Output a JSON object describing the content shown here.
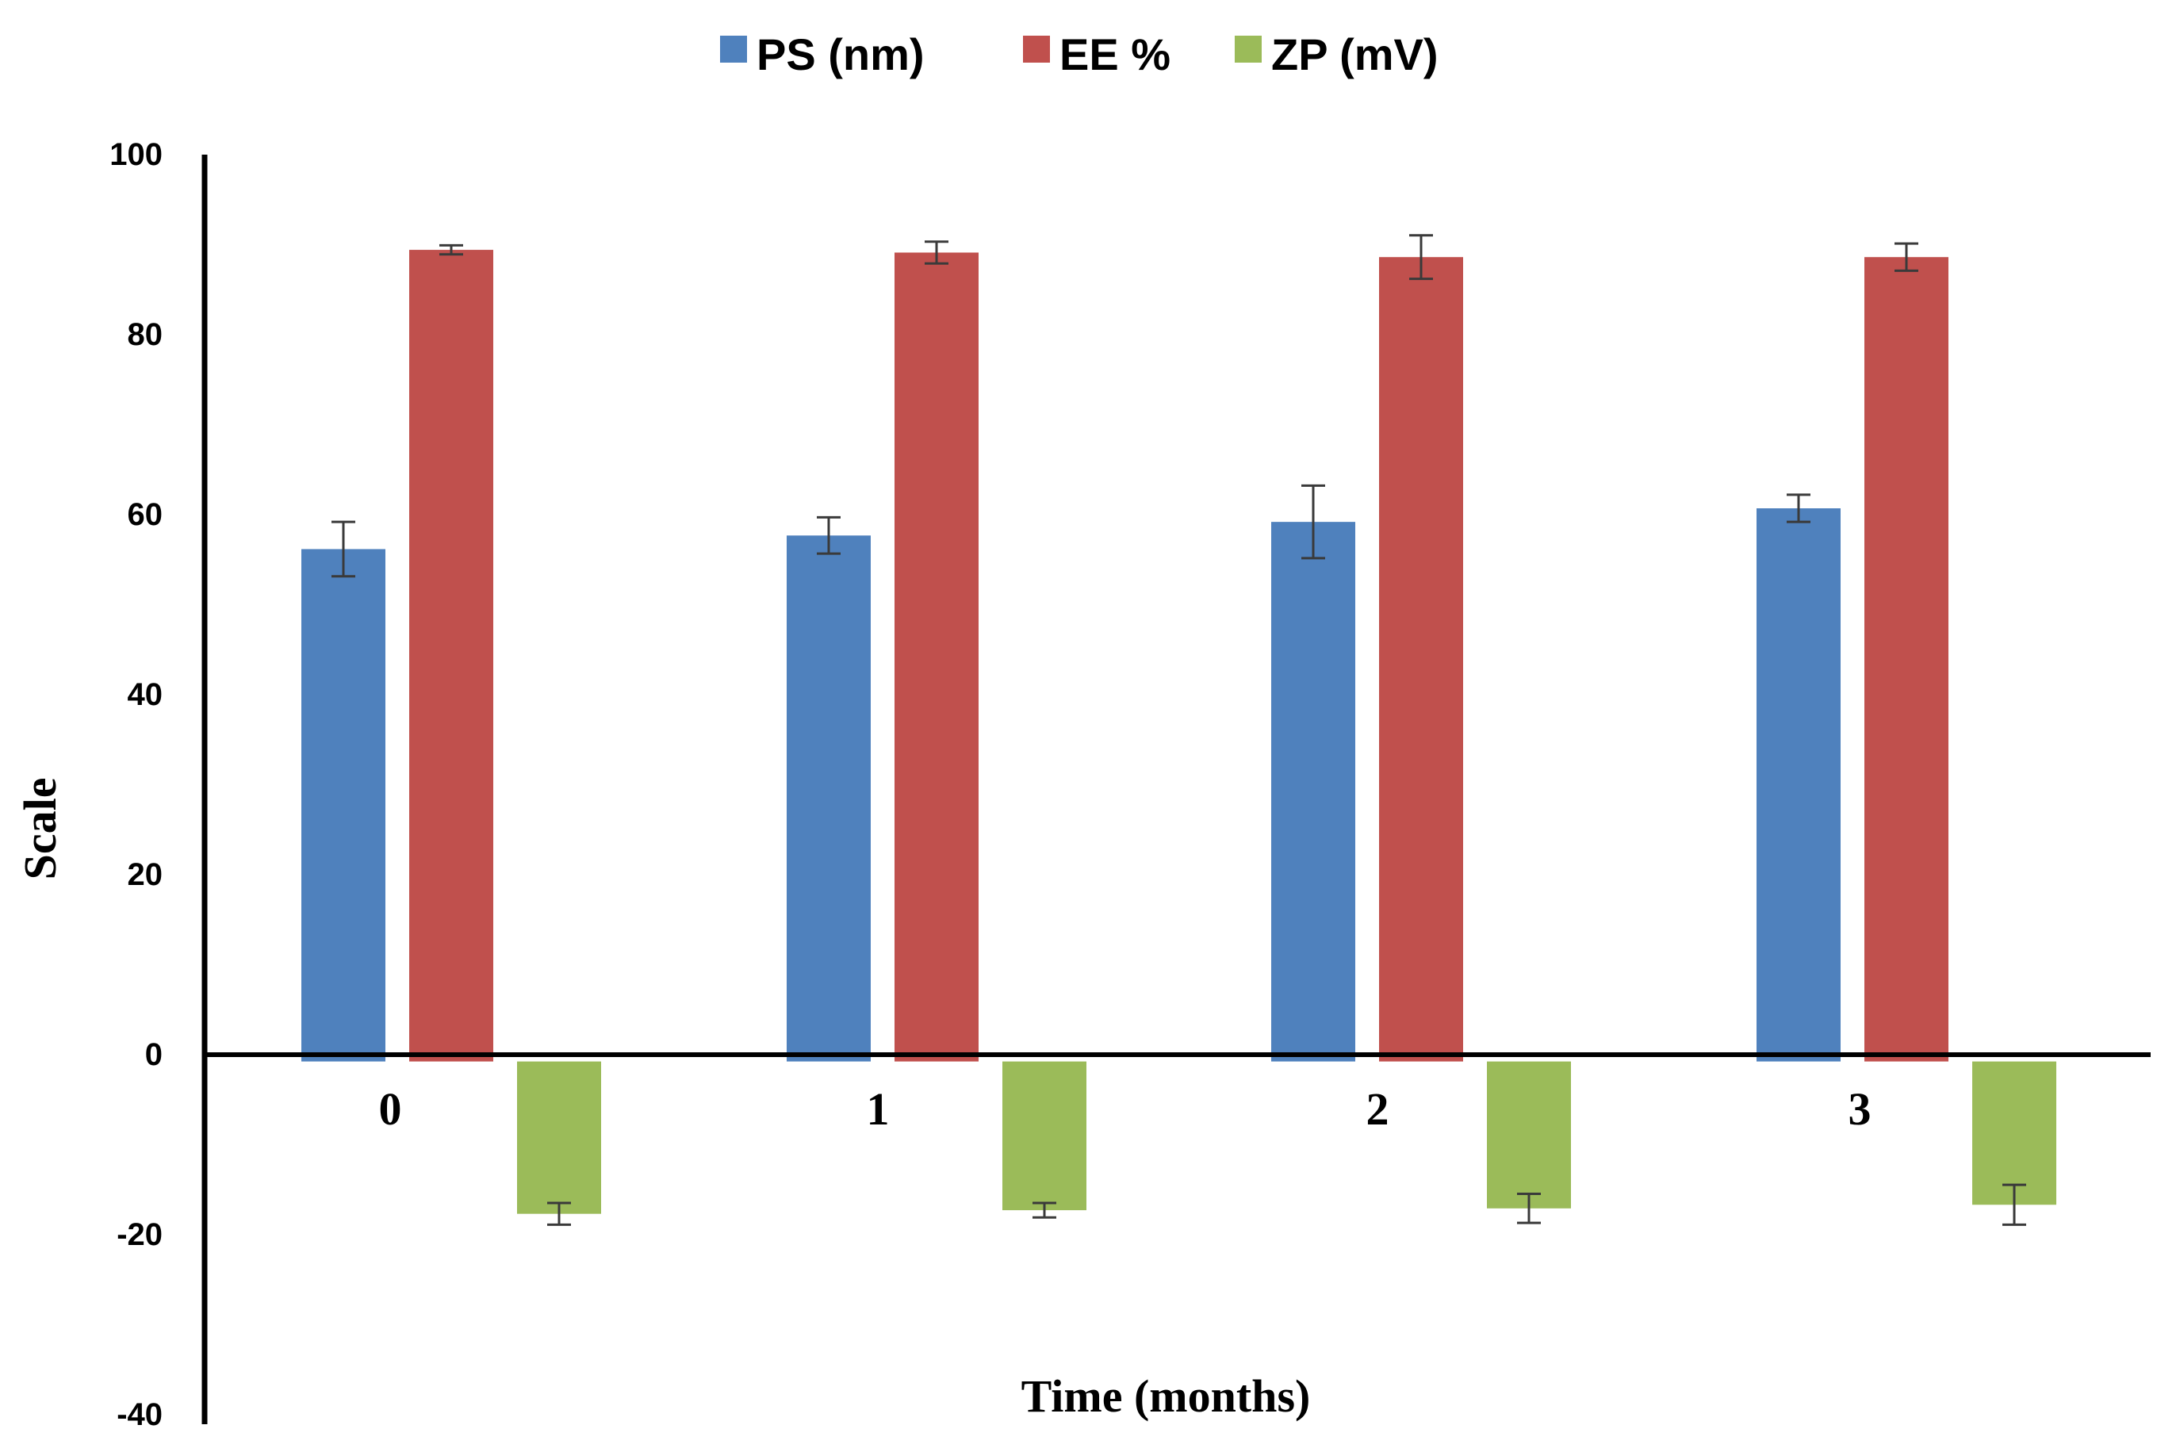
{
  "chart_data": {
    "type": "bar",
    "title": "",
    "xlabel": "Time (months)",
    "ylabel": "Scale",
    "categories": [
      "0",
      "1",
      "2",
      "3"
    ],
    "ylim": [
      -40,
      100
    ],
    "yticks": [
      "100",
      "80",
      "60",
      "40",
      "20",
      "0",
      "-20",
      "-40"
    ],
    "grid": false,
    "legend_position": "top-center",
    "series": [
      {
        "name": "PS (nm)",
        "color": "#4F81BD",
        "values": [
          56.5,
          58,
          59.5,
          61
        ],
        "errors": [
          3,
          2,
          4,
          1.5
        ]
      },
      {
        "name": "EE %",
        "color": "#C0504D",
        "values": [
          89.5,
          89.2,
          88.7,
          88.7
        ],
        "errors": [
          0.5,
          1.2,
          2.4,
          1.5
        ]
      },
      {
        "name": "ZP (mV)",
        "color": "#9BBB59",
        "values": [
          -16.8,
          -16.4,
          -16.2,
          -15.8
        ],
        "errors": [
          1.2,
          0.8,
          1.6,
          2.2
        ]
      }
    ]
  }
}
